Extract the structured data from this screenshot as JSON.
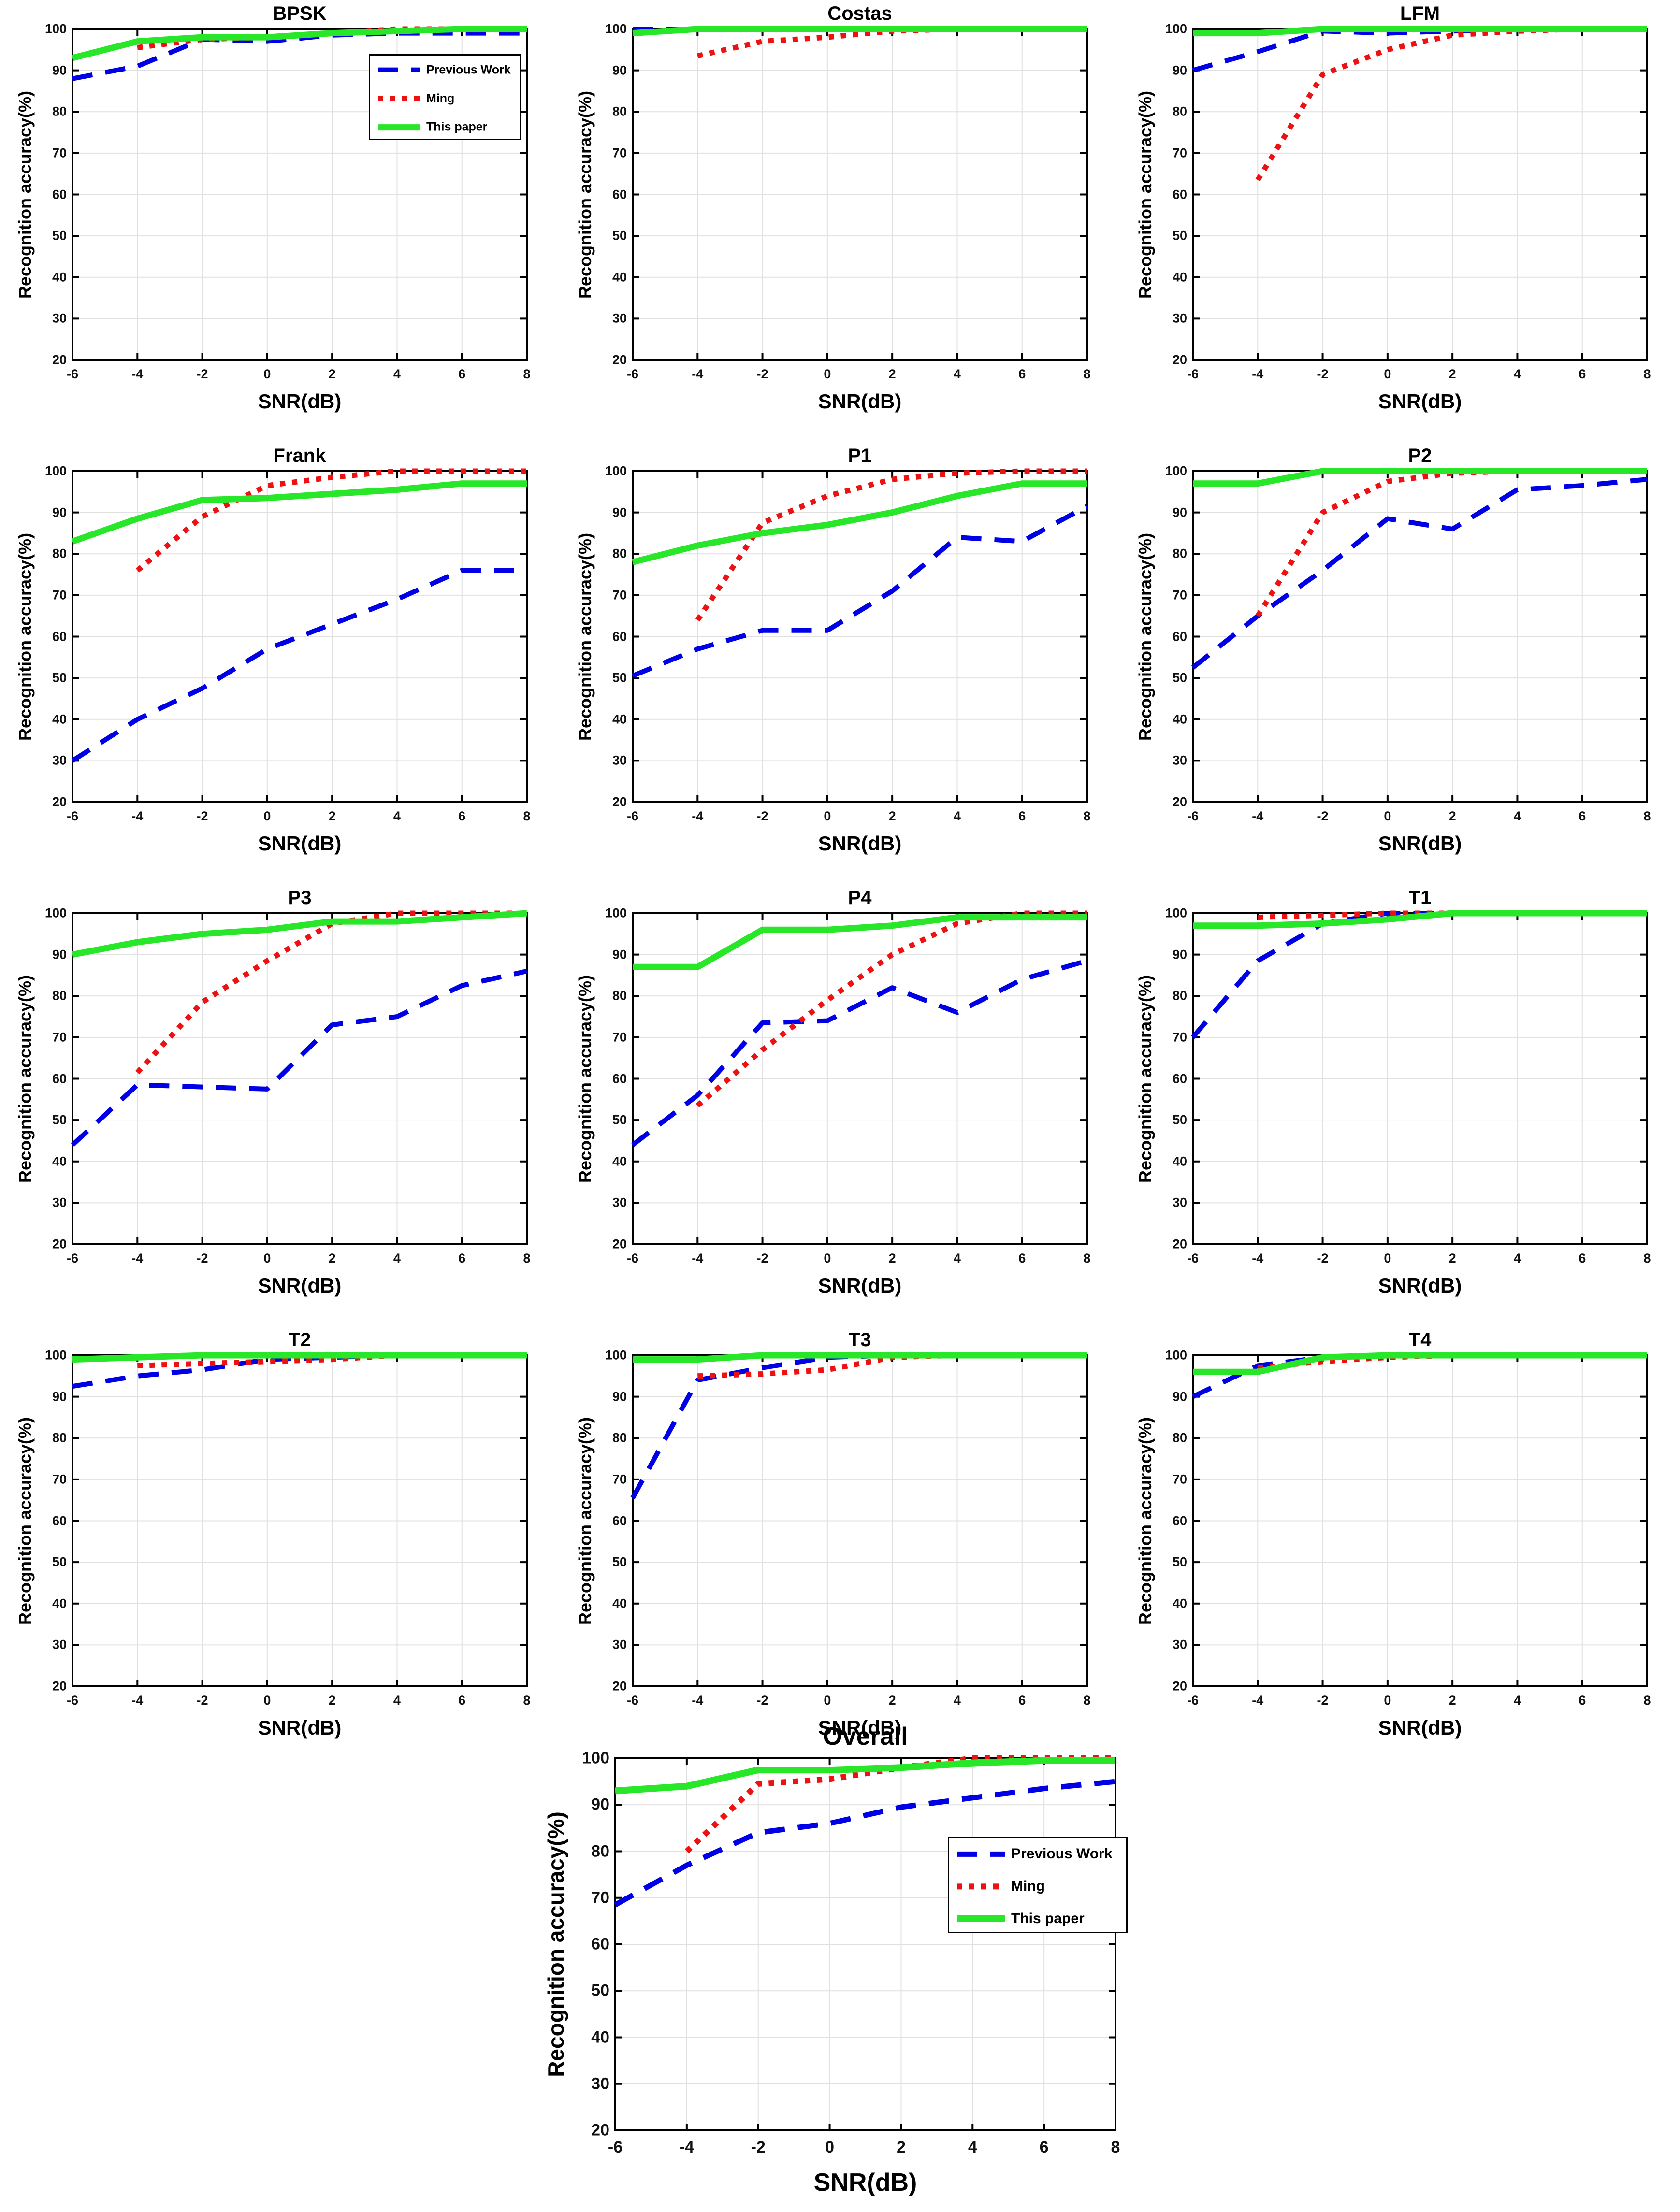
{
  "figure": {
    "background": "#ffffff",
    "xlabel": "SNR(dB)",
    "ylabel": "Recognition accuracy(%)",
    "xlim": [
      -6,
      8
    ],
    "ylim": [
      20,
      100
    ],
    "x_ticks": [
      -6,
      -4,
      -2,
      0,
      2,
      4,
      6,
      8
    ],
    "y_ticks": [
      20,
      30,
      40,
      50,
      60,
      70,
      80,
      90,
      100
    ],
    "grid": true,
    "legend": [
      "Previous Work",
      "Ming",
      "This paper"
    ],
    "colors": {
      "previous_work": "#0000E6",
      "ming": "#EE1111",
      "this_paper": "#28E628",
      "grid_line": "#E0E0E0",
      "axis_box": "#000000"
    },
    "line_styles": {
      "previous_work": "dashed",
      "ming": "dotted",
      "this_paper": "solid"
    }
  },
  "chart_data": [
    {
      "type": "line",
      "title": "BPSK",
      "xlabel": "SNR(dB)",
      "ylabel": "Recognition accuracy(%)",
      "x": [
        -6,
        -4,
        -2,
        0,
        2,
        4,
        6,
        8
      ],
      "legend_position": "top-right",
      "series": [
        {
          "name": "Previous Work",
          "values": [
            88,
            91,
            97.5,
            97,
            98.5,
            99,
            99,
            99
          ]
        },
        {
          "name": "Ming",
          "values": [
            null,
            95.5,
            97.5,
            98,
            99,
            100,
            100,
            100
          ]
        },
        {
          "name": "This paper",
          "values": [
            93,
            97,
            98,
            98,
            99,
            99.5,
            100,
            100
          ]
        }
      ]
    },
    {
      "type": "line",
      "title": "Costas",
      "xlabel": "SNR(dB)",
      "ylabel": "Recognition accuracy(%)",
      "x": [
        -6,
        -4,
        -2,
        0,
        2,
        4,
        6,
        8
      ],
      "legend_position": null,
      "series": [
        {
          "name": "Previous Work",
          "values": [
            100,
            100,
            100,
            100,
            100,
            100,
            100,
            100
          ]
        },
        {
          "name": "Ming",
          "values": [
            null,
            93.5,
            97,
            98,
            99.5,
            100,
            100,
            100
          ]
        },
        {
          "name": "This paper",
          "values": [
            99,
            100,
            100,
            100,
            100,
            100,
            100,
            100
          ]
        }
      ]
    },
    {
      "type": "line",
      "title": "LFM",
      "xlabel": "SNR(dB)",
      "ylabel": "Recognition accuracy(%)",
      "x": [
        -6,
        -4,
        -2,
        0,
        2,
        4,
        6,
        8
      ],
      "legend_position": null,
      "series": [
        {
          "name": "Previous Work",
          "values": [
            90,
            94.5,
            99.5,
            99,
            99.5,
            100,
            100,
            100
          ]
        },
        {
          "name": "Ming",
          "values": [
            null,
            63.5,
            89,
            95,
            98.5,
            99.5,
            100,
            100
          ]
        },
        {
          "name": "This paper",
          "values": [
            99,
            99,
            100,
            100,
            100,
            100,
            100,
            100
          ]
        }
      ]
    },
    {
      "type": "line",
      "title": "Frank",
      "xlabel": "SNR(dB)",
      "ylabel": "Recognition accuracy(%)",
      "x": [
        -6,
        -4,
        -2,
        0,
        2,
        4,
        6,
        8
      ],
      "legend_position": null,
      "series": [
        {
          "name": "Previous Work",
          "values": [
            30,
            40,
            47.5,
            57,
            63,
            69,
            76,
            76
          ]
        },
        {
          "name": "Ming",
          "values": [
            null,
            76,
            89,
            96.5,
            98.5,
            100,
            100,
            100
          ]
        },
        {
          "name": "This paper",
          "values": [
            83,
            88.5,
            93,
            93.5,
            94.5,
            95.5,
            97,
            97
          ]
        }
      ]
    },
    {
      "type": "line",
      "title": "P1",
      "xlabel": "SNR(dB)",
      "ylabel": "Recognition accuracy(%)",
      "x": [
        -6,
        -4,
        -2,
        0,
        2,
        4,
        6,
        8
      ],
      "legend_position": null,
      "series": [
        {
          "name": "Previous Work",
          "values": [
            50.5,
            57,
            61.5,
            61.5,
            71,
            84,
            83,
            91.5
          ]
        },
        {
          "name": "Ming",
          "values": [
            null,
            64,
            87.5,
            94,
            98,
            99.5,
            100,
            100
          ]
        },
        {
          "name": "This paper",
          "values": [
            78,
            82,
            85,
            87,
            90,
            94,
            97,
            97
          ]
        }
      ]
    },
    {
      "type": "line",
      "title": "P2",
      "xlabel": "SNR(dB)",
      "ylabel": "Recognition accuracy(%)",
      "x": [
        -6,
        -4,
        -2,
        0,
        2,
        4,
        6,
        8
      ],
      "legend_position": null,
      "series": [
        {
          "name": "Previous Work",
          "values": [
            52.5,
            65,
            76,
            88.5,
            86,
            95.5,
            96.5,
            98
          ]
        },
        {
          "name": "Ming",
          "values": [
            null,
            65,
            90,
            97.5,
            99.5,
            100,
            100,
            100
          ]
        },
        {
          "name": "This paper",
          "values": [
            97,
            97,
            100,
            100,
            100,
            100,
            100,
            100
          ]
        }
      ]
    },
    {
      "type": "line",
      "title": "P3",
      "xlabel": "SNR(dB)",
      "ylabel": "Recognition accuracy(%)",
      "x": [
        -6,
        -4,
        -2,
        0,
        2,
        4,
        6,
        8
      ],
      "legend_position": null,
      "series": [
        {
          "name": "Previous Work",
          "values": [
            44,
            58.5,
            58,
            57.5,
            73,
            75,
            82.5,
            86
          ]
        },
        {
          "name": "Ming",
          "values": [
            null,
            61.5,
            78.5,
            88.5,
            97.5,
            100,
            100,
            100
          ]
        },
        {
          "name": "This paper",
          "values": [
            90,
            93,
            95,
            96,
            98,
            98,
            99,
            100
          ]
        }
      ]
    },
    {
      "type": "line",
      "title": "P4",
      "xlabel": "SNR(dB)",
      "ylabel": "Recognition accuracy(%)",
      "x": [
        -6,
        -4,
        -2,
        0,
        2,
        4,
        6,
        8
      ],
      "legend_position": null,
      "series": [
        {
          "name": "Previous Work",
          "values": [
            44,
            56,
            73.5,
            74,
            82,
            76,
            84,
            88.5
          ]
        },
        {
          "name": "Ming",
          "values": [
            null,
            53.5,
            67,
            79,
            90,
            97.5,
            100,
            100
          ]
        },
        {
          "name": "This paper",
          "values": [
            87,
            87,
            96,
            96,
            97,
            99,
            99,
            99
          ]
        }
      ]
    },
    {
      "type": "line",
      "title": "T1",
      "xlabel": "SNR(dB)",
      "ylabel": "Recognition accuracy(%)",
      "x": [
        -6,
        -4,
        -2,
        0,
        2,
        4,
        6,
        8
      ],
      "legend_position": null,
      "series": [
        {
          "name": "Previous Work",
          "values": [
            70,
            88.5,
            97.5,
            100,
            100,
            100,
            100,
            100
          ]
        },
        {
          "name": "Ming",
          "values": [
            null,
            99,
            99.5,
            100,
            100,
            100,
            100,
            100
          ]
        },
        {
          "name": "This paper",
          "values": [
            97,
            97,
            97.5,
            98.5,
            100,
            100,
            100,
            100
          ]
        }
      ]
    },
    {
      "type": "line",
      "title": "T2",
      "xlabel": "SNR(dB)",
      "ylabel": "Recognition accuracy(%)",
      "x": [
        -6,
        -4,
        -2,
        0,
        2,
        4,
        6,
        8
      ],
      "legend_position": null,
      "series": [
        {
          "name": "Previous Work",
          "values": [
            92.5,
            95,
            96.5,
            99,
            99.5,
            100,
            100,
            100
          ]
        },
        {
          "name": "Ming",
          "values": [
            null,
            97.5,
            98,
            98.5,
            99,
            100,
            100,
            100
          ]
        },
        {
          "name": "This paper",
          "values": [
            99,
            99.5,
            100,
            100,
            100,
            100,
            100,
            100
          ]
        }
      ]
    },
    {
      "type": "line",
      "title": "T3",
      "xlabel": "SNR(dB)",
      "ylabel": "Recognition accuracy(%)",
      "x": [
        -6,
        -4,
        -2,
        0,
        2,
        4,
        6,
        8
      ],
      "legend_position": null,
      "series": [
        {
          "name": "Previous Work",
          "values": [
            65.5,
            94,
            97,
            99.5,
            100,
            100,
            100,
            100
          ]
        },
        {
          "name": "Ming",
          "values": [
            null,
            95,
            95.5,
            96.5,
            99.5,
            100,
            100,
            100
          ]
        },
        {
          "name": "This paper",
          "values": [
            99,
            99,
            100,
            100,
            100,
            100,
            100,
            100
          ]
        }
      ]
    },
    {
      "type": "line",
      "title": "T4",
      "xlabel": "SNR(dB)",
      "ylabel": "Recognition accuracy(%)",
      "x": [
        -6,
        -4,
        -2,
        0,
        2,
        4,
        6,
        8
      ],
      "legend_position": null,
      "series": [
        {
          "name": "Previous Work",
          "values": [
            90,
            97.5,
            99.5,
            100,
            100,
            100,
            100,
            100
          ]
        },
        {
          "name": "Ming",
          "values": [
            null,
            97,
            98.5,
            99.5,
            100,
            100,
            100,
            100
          ]
        },
        {
          "name": "This paper",
          "values": [
            96,
            96,
            99.5,
            100,
            100,
            100,
            100,
            100
          ]
        }
      ]
    },
    {
      "type": "line",
      "title": "Overall",
      "xlabel": "SNR(dB)",
      "ylabel": "Recognition accuracy(%)",
      "x": [
        -6,
        -4,
        -2,
        0,
        2,
        4,
        6,
        8
      ],
      "legend_position": "mid-right",
      "series": [
        {
          "name": "Previous Work",
          "values": [
            68.5,
            77,
            84,
            86,
            89.5,
            91.5,
            93.5,
            95
          ]
        },
        {
          "name": "Ming",
          "values": [
            null,
            80,
            94.5,
            95.5,
            98,
            100,
            100,
            100
          ]
        },
        {
          "name": "This paper",
          "values": [
            93,
            94,
            97.5,
            97.5,
            98,
            99,
            99.5,
            99.5
          ]
        }
      ]
    }
  ]
}
